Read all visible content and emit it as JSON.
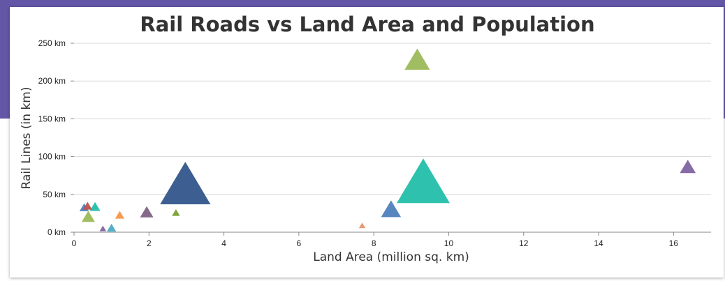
{
  "theme": {
    "band_color": "#6356a6",
    "grid_color": "#d8d8d8",
    "axis_color": "#888888"
  },
  "chart_data": {
    "type": "bubble",
    "marker": "triangle",
    "title": "Rail Roads vs Land Area and Population",
    "xlabel": "Land Area (million sq. km)",
    "ylabel": "Rail Lines (in km)",
    "xlim": [
      0,
      17
    ],
    "ylim": [
      0,
      250
    ],
    "grid": true,
    "x_ticks": [
      {
        "value": 0,
        "label": "0"
      },
      {
        "value": 2,
        "label": "2"
      },
      {
        "value": 4,
        "label": "4"
      },
      {
        "value": 6,
        "label": "6"
      },
      {
        "value": 8,
        "label": "8"
      },
      {
        "value": 10,
        "label": "10"
      },
      {
        "value": 12,
        "label": "12"
      },
      {
        "value": 14,
        "label": "14"
      },
      {
        "value": 16,
        "label": "16"
      }
    ],
    "y_ticks": [
      {
        "value": 0,
        "label": "0 km"
      },
      {
        "value": 50,
        "label": "50 km"
      },
      {
        "value": 100,
        "label": "100 km"
      },
      {
        "value": 150,
        "label": "150 km"
      },
      {
        "value": 200,
        "label": "200 km"
      },
      {
        "value": 250,
        "label": "250 km"
      }
    ],
    "points": [
      {
        "x": 0.27,
        "y": 33,
        "size": 7,
        "color": "#4f81bc"
      },
      {
        "x": 0.36,
        "y": 35,
        "size": 7,
        "color": "#c0504e"
      },
      {
        "x": 0.38,
        "y": 21,
        "size": 10,
        "color": "#9bbb58"
      },
      {
        "x": 0.56,
        "y": 34,
        "size": 8,
        "color": "#23bfaa"
      },
      {
        "x": 0.77,
        "y": 5,
        "size": 5,
        "color": "#8064a1"
      },
      {
        "x": 1.0,
        "y": 6,
        "size": 7,
        "color": "#4aacc5"
      },
      {
        "x": 1.22,
        "y": 23,
        "size": 7,
        "color": "#f79647"
      },
      {
        "x": 1.94,
        "y": 27,
        "size": 10,
        "color": "#7f6084"
      },
      {
        "x": 2.72,
        "y": 26,
        "size": 6,
        "color": "#77a033"
      },
      {
        "x": 2.97,
        "y": 65,
        "size": 38,
        "color": "#33558b"
      },
      {
        "x": 7.69,
        "y": 9,
        "size": 5,
        "color": "#e59566"
      },
      {
        "x": 8.46,
        "y": 31,
        "size": 15,
        "color": "#4f81bc"
      },
      {
        "x": 9.16,
        "y": 229,
        "size": 19,
        "color": "#9bbb58"
      },
      {
        "x": 9.32,
        "y": 68,
        "size": 40,
        "color": "#23bfaa"
      },
      {
        "x": 16.38,
        "y": 87,
        "size": 12,
        "color": "#8064a1"
      }
    ]
  }
}
